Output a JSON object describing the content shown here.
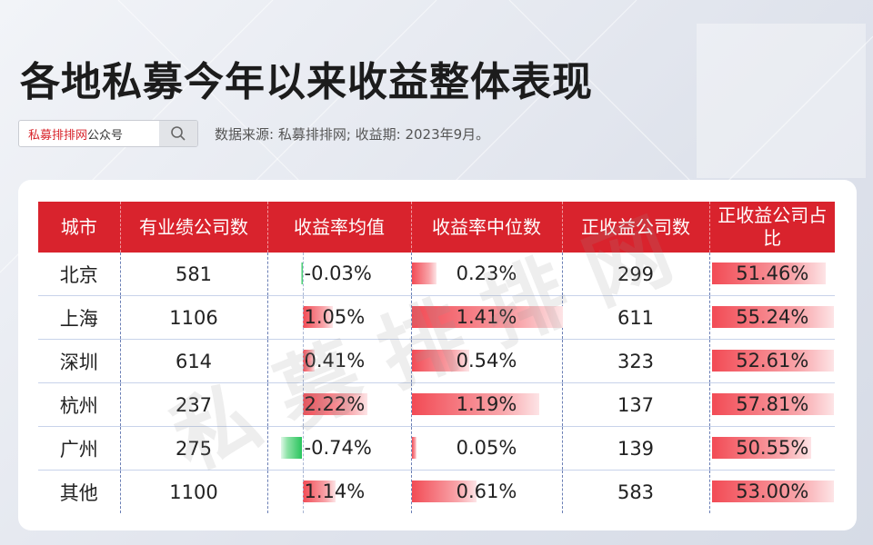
{
  "title": "各地私募今年以来收益整体表现",
  "search": {
    "brand": "私募排排网",
    "suffix": "公众号",
    "icon": "search-icon"
  },
  "source": "数据来源: 私募排排网; 收益期: 2023年9月。",
  "watermark": "私募排排网",
  "colors": {
    "header": "#d9232d",
    "positive_bar": "#f24b55",
    "negative_bar": "#29c45d"
  },
  "table": {
    "headers": [
      "城市",
      "有业绩公司数",
      "收益率均值",
      "收益率中位数",
      "正收益公司数",
      "正收益公司占比"
    ],
    "rows": [
      {
        "city": "北京",
        "firms": "581",
        "mean": "-0.03%",
        "mean_value": -0.03,
        "median": "0.23%",
        "median_value": 0.23,
        "pos_firms": "299",
        "pos_ratio": "51.46%",
        "pos_ratio_value": 51.46
      },
      {
        "city": "上海",
        "firms": "1106",
        "mean": "1.05%",
        "mean_value": 1.05,
        "median": "1.41%",
        "median_value": 1.41,
        "pos_firms": "611",
        "pos_ratio": "55.24%",
        "pos_ratio_value": 55.24
      },
      {
        "city": "深圳",
        "firms": "614",
        "mean": "0.41%",
        "mean_value": 0.41,
        "median": "0.54%",
        "median_value": 0.54,
        "pos_firms": "323",
        "pos_ratio": "52.61%",
        "pos_ratio_value": 52.61
      },
      {
        "city": "杭州",
        "firms": "237",
        "mean": "2.22%",
        "mean_value": 2.22,
        "median": "1.19%",
        "median_value": 1.19,
        "pos_firms": "137",
        "pos_ratio": "57.81%",
        "pos_ratio_value": 57.81
      },
      {
        "city": "广州",
        "firms": "275",
        "mean": "-0.74%",
        "mean_value": -0.74,
        "median": "0.05%",
        "median_value": 0.05,
        "pos_firms": "139",
        "pos_ratio": "50.55%",
        "pos_ratio_value": 50.55
      },
      {
        "city": "其他",
        "firms": "1100",
        "mean": "1.14%",
        "mean_value": 1.14,
        "median": "0.61%",
        "median_value": 0.61,
        "pos_firms": "583",
        "pos_ratio": "53.00%",
        "pos_ratio_value": 53.0
      }
    ]
  }
}
